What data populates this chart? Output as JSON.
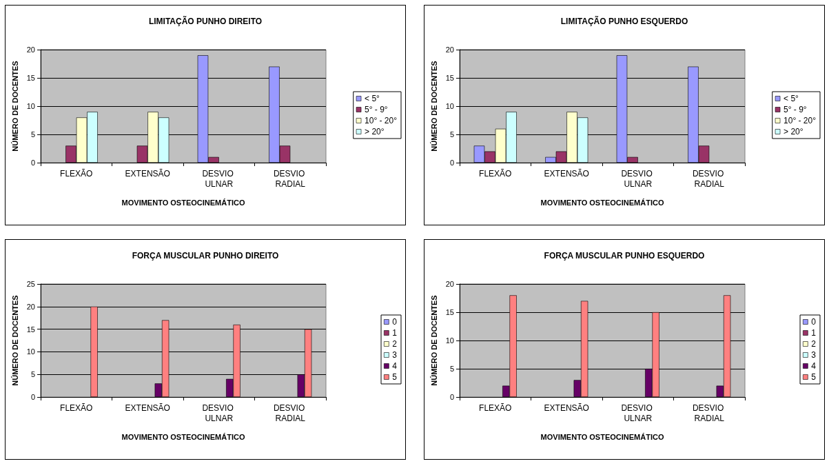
{
  "chart_data": [
    {
      "type": "bar",
      "title": "LIMITAÇÃO PUNHO DIREITO",
      "xlabel": "MOVIMENTO OSTEOCINEMÁTICO",
      "ylabel": "NÚMERO DE DOCENTES",
      "categories": [
        "FLEXÃO",
        "EXTENSÃO",
        "DESVIO ULNAR",
        "DESVIO RADIAL"
      ],
      "ylim": [
        0,
        20
      ],
      "yticks": [
        0,
        5,
        10,
        15,
        20
      ],
      "grid": "y",
      "legend": "right",
      "series": [
        {
          "name": "< 5°",
          "color": "#9999ff",
          "values": [
            0,
            0,
            19,
            17
          ]
        },
        {
          "name": "5° - 9°",
          "color": "#993366",
          "values": [
            3,
            3,
            1,
            3
          ]
        },
        {
          "name": "10° - 20°",
          "color": "#ffffcc",
          "values": [
            8,
            9,
            0,
            0
          ]
        },
        {
          "name": "> 20°",
          "color": "#ccffff",
          "values": [
            9,
            8,
            0,
            0
          ]
        }
      ]
    },
    {
      "type": "bar",
      "title": "LIMITAÇÃO PUNHO ESQUERDO",
      "xlabel": "MOVIMENTO OSTEOCINEMÁTICO",
      "ylabel": "NÚMERO DE DOCENTES",
      "categories": [
        "FLEXÃO",
        "EXTENSÃO",
        "DESVIO ULNAR",
        "DESVIO RADIAL"
      ],
      "ylim": [
        0,
        20
      ],
      "yticks": [
        0,
        5,
        10,
        15,
        20
      ],
      "grid": "y",
      "legend": "right",
      "series": [
        {
          "name": "< 5°",
          "color": "#9999ff",
          "values": [
            3,
            1,
            19,
            17
          ]
        },
        {
          "name": "5° - 9°",
          "color": "#993366",
          "values": [
            2,
            2,
            1,
            3
          ]
        },
        {
          "name": "10° - 20°",
          "color": "#ffffcc",
          "values": [
            6,
            9,
            0,
            0
          ]
        },
        {
          "name": "> 20°",
          "color": "#ccffff",
          "values": [
            9,
            8,
            0,
            0
          ]
        }
      ]
    },
    {
      "type": "bar",
      "title": "FORÇA MUSCULAR PUNHO DIREITO",
      "xlabel": "MOVIMENTO OSTEOCINEMÁTICO",
      "ylabel": "NÚMERO DE DOCENTES",
      "categories": [
        "FLEXÃO",
        "EXTENSÃO",
        "DESVIO ULNAR",
        "DESVIO RADIAL"
      ],
      "ylim": [
        0,
        25
      ],
      "yticks": [
        0,
        5,
        10,
        15,
        20,
        25
      ],
      "grid": "y",
      "legend": "right",
      "series": [
        {
          "name": "0",
          "color": "#9999ff",
          "values": [
            0,
            0,
            0,
            0
          ]
        },
        {
          "name": "1",
          "color": "#993366",
          "values": [
            0,
            0,
            0,
            0
          ]
        },
        {
          "name": "2",
          "color": "#ffffcc",
          "values": [
            0,
            0,
            0,
            0
          ]
        },
        {
          "name": "3",
          "color": "#ccffff",
          "values": [
            0,
            0,
            0,
            0
          ]
        },
        {
          "name": "4",
          "color": "#660066",
          "values": [
            0,
            3,
            4,
            5
          ]
        },
        {
          "name": "5",
          "color": "#ff8080",
          "values": [
            20,
            17,
            16,
            15
          ]
        }
      ]
    },
    {
      "type": "bar",
      "title": "FORÇA MUSCULAR PUNHO ESQUERDO",
      "xlabel": "MOVIMENTO OSTEOCINEMÁTICO",
      "ylabel": "NÚMERO DE DOCENTES",
      "categories": [
        "FLEXÃO",
        "EXTENSÃO",
        "DESVIO ULNAR",
        "DESVIO RADIAL"
      ],
      "ylim": [
        0,
        20
      ],
      "yticks": [
        0,
        5,
        10,
        15,
        20
      ],
      "grid": "y",
      "legend": "right",
      "series": [
        {
          "name": "0",
          "color": "#9999ff",
          "values": [
            0,
            0,
            0,
            0
          ]
        },
        {
          "name": "1",
          "color": "#993366",
          "values": [
            0,
            0,
            0,
            0
          ]
        },
        {
          "name": "2",
          "color": "#ffffcc",
          "values": [
            0,
            0,
            0,
            0
          ]
        },
        {
          "name": "3",
          "color": "#ccffff",
          "values": [
            0,
            0,
            0,
            0
          ]
        },
        {
          "name": "4",
          "color": "#660066",
          "values": [
            2,
            3,
            5,
            2
          ]
        },
        {
          "name": "5",
          "color": "#ff8080",
          "values": [
            18,
            17,
            15,
            18
          ]
        }
      ]
    }
  ]
}
